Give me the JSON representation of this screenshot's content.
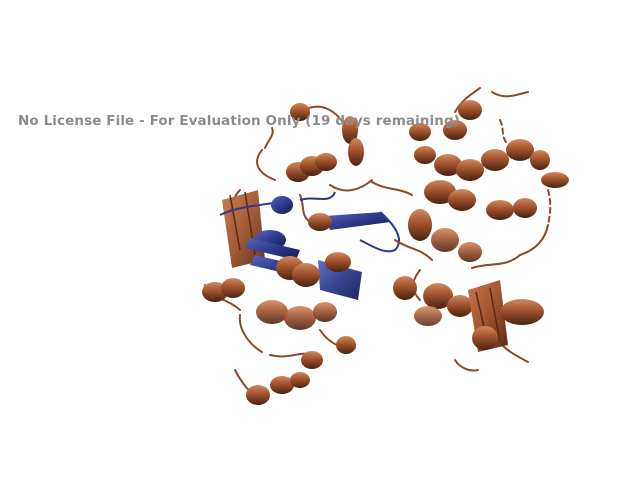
{
  "watermark": {
    "text": "No License File - For Evaluation Only (19 days remaining)"
  },
  "colors": {
    "background": "#ffffff",
    "chain_a_main": "#a0522d",
    "chain_a_dark": "#5a2a12",
    "chain_a_light": "#c8794d",
    "chain_b_main": "#2e3a8c",
    "chain_b_dark": "#1c2460",
    "watermark": "#8c8c8c"
  }
}
